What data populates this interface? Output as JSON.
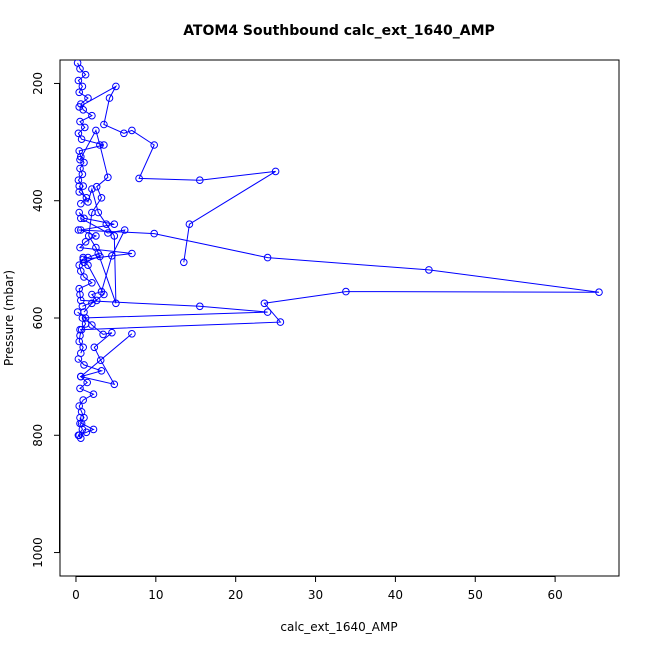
{
  "chart_data": {
    "type": "scatter",
    "title": "ATOM4 Southbound calc_ext_1640_AMP",
    "xlabel": "calc_ext_1640_AMP",
    "ylabel": "Pressure (mbar)",
    "xlim": [
      -2,
      68
    ],
    "ylim": [
      1040,
      160
    ],
    "y_reversed": true,
    "x_ticks": [
      0,
      10,
      20,
      30,
      40,
      50,
      60
    ],
    "y_ticks": [
      200,
      400,
      600,
      800,
      1000
    ],
    "grid": false,
    "legend": "none",
    "color": "#0000ff",
    "series": [
      {
        "x": [
          0.2,
          0.5,
          1.2,
          0.3,
          0.8,
          0.4,
          1.5,
          0.6,
          0.9,
          2.0,
          0.5,
          1.1,
          0.3,
          0.7,
          3.5,
          0.4,
          0.6,
          1.0,
          0.5,
          0.8,
          0.3,
          0.9,
          0.4,
          1.3,
          0.6
        ],
        "y": [
          165,
          175,
          185,
          195,
          205,
          215,
          225,
          235,
          245,
          255,
          265,
          275,
          285,
          295,
          305,
          315,
          325,
          335,
          345,
          355,
          365,
          375,
          385,
          395,
          405
        ]
      },
      {
        "x": [
          0.4,
          1.0,
          4.8,
          0.6,
          2.5,
          1.2,
          0.5,
          7.0,
          0.9,
          0.4,
          0.6,
          1.0,
          2.0,
          0.4,
          0.5,
          0.6,
          15.5,
          24.0,
          0.8,
          1.2,
          0.7,
          0.5,
          0.4,
          0.9,
          0.6
        ],
        "y": [
          420,
          430,
          440,
          450,
          460,
          470,
          480,
          490,
          500,
          510,
          520,
          530,
          540,
          550,
          560,
          570,
          580,
          590,
          600,
          610,
          620,
          630,
          640,
          650,
          660
        ]
      },
      {
        "x": [
          0.3,
          1.0,
          3.2,
          0.6,
          1.4,
          0.5,
          2.2,
          0.9,
          0.4,
          0.7,
          1.0,
          0.5,
          0.8,
          0.3,
          0.6,
          0.4,
          1.3,
          2.2,
          0.7,
          0.5
        ],
        "y": [
          670,
          680,
          690,
          700,
          710,
          720,
          730,
          740,
          750,
          760,
          770,
          780,
          790,
          800,
          805,
          800,
          795,
          790,
          780,
          770
        ]
      },
      {
        "x": [
          0.5,
          2.5,
          3.0,
          4.0,
          2.6,
          3.2,
          2.0,
          1.6,
          2.5,
          3.0,
          1.0,
          1.5,
          3.5,
          2.0,
          1.0
        ],
        "y": [
          330,
          280,
          305,
          360,
          376,
          395,
          420,
          460,
          480,
          495,
          505,
          510,
          560,
          575,
          590
        ]
      },
      {
        "x": [
          0.4,
          5.0,
          4.2,
          3.5,
          6.0,
          7.0,
          9.8,
          7.9,
          15.5,
          25.0,
          14.2,
          13.5
        ],
        "y": [
          240,
          205,
          225,
          270,
          285,
          280,
          305,
          362,
          365,
          350,
          440,
          505
        ]
      },
      {
        "x": [
          0.3,
          9.8,
          24.0,
          44.2,
          65.5,
          33.8,
          23.6,
          25.6,
          0.5
        ],
        "y": [
          450,
          456,
          497,
          518,
          556,
          555,
          575,
          607,
          620
        ]
      },
      {
        "x": [
          0.2,
          1.2,
          2.0,
          3.4,
          4.5,
          2.3,
          3.1,
          4.8,
          0.6,
          7.0
        ],
        "y": [
          590,
          600,
          612,
          628,
          625,
          650,
          672,
          713,
          700,
          627
        ]
      },
      {
        "x": [
          0.6,
          4.0,
          6.1,
          4.5,
          3.2,
          2.0,
          2.6,
          0.8
        ],
        "y": [
          430,
          455,
          450,
          494,
          555,
          560,
          570,
          580
        ]
      },
      {
        "x": [
          0.4,
          1.5,
          2.0,
          2.8,
          3.8,
          4.8,
          5.0,
          2.8,
          1.5,
          0.9
        ],
        "y": [
          375,
          402,
          380,
          420,
          440,
          460,
          575,
          490,
          497,
          497
        ]
      }
    ]
  }
}
